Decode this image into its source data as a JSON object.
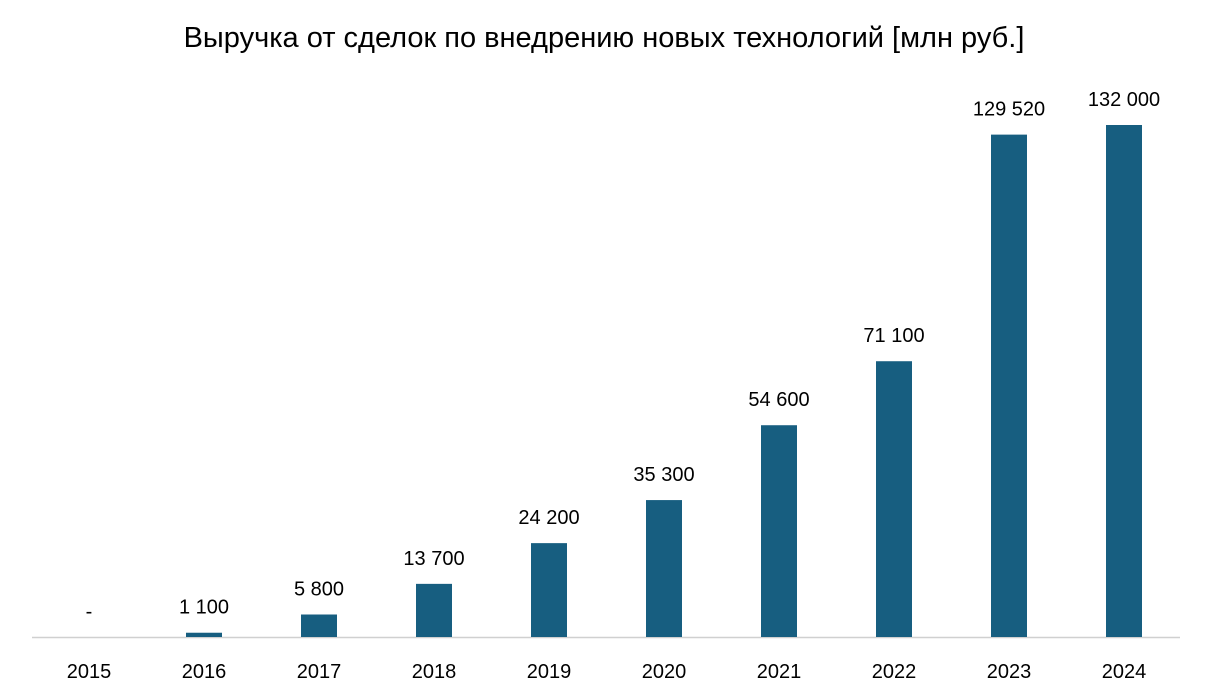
{
  "chart_data": {
    "type": "bar",
    "title": "Выручка от сделок по внедрению новых технологий [млн руб.]",
    "xlabel": "",
    "ylabel": "",
    "categories": [
      "2015",
      "2016",
      "2017",
      "2018",
      "2019",
      "2020",
      "2021",
      "2022",
      "2023",
      "2024"
    ],
    "values": [
      0,
      1100,
      5800,
      13700,
      24200,
      35300,
      54600,
      71100,
      129520,
      132000
    ],
    "data_labels": [
      "-",
      "1 100",
      "5 800",
      "13 700",
      "24 200",
      "35 300",
      "54 600",
      "71 100",
      "129 520",
      "132 000"
    ],
    "ylim": [
      0,
      132000
    ],
    "grid": false,
    "legend": "none",
    "colors": {
      "bar": "#175e80",
      "axis": "#d0d0d0"
    }
  }
}
